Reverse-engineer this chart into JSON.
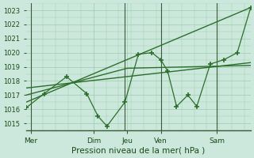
{
  "background_color": "#cce8dc",
  "grid_color": "#99ccaa",
  "line_color": "#2d6e2d",
  "fig_width": 3.2,
  "fig_height": 2.0,
  "dpi": 100,
  "xlim": [
    0,
    100
  ],
  "ylim": [
    1014.5,
    1023.5
  ],
  "yticks": [
    1015,
    1016,
    1017,
    1018,
    1019,
    1020,
    1021,
    1022,
    1023
  ],
  "xlabel": "Pression niveau de la mer( hPa )",
  "xtick_positions": [
    2,
    30,
    45,
    60,
    85
  ],
  "xtick_labels": [
    "Mer",
    "Dim",
    "Jeu",
    "Ven",
    "Sam"
  ],
  "vlines": [
    2,
    44,
    60,
    85
  ],
  "trend_upper": {
    "x": [
      0,
      100
    ],
    "y": [
      1016.5,
      1023.2
    ]
  },
  "trend_lower": {
    "x": [
      0,
      100
    ],
    "y": [
      1017.5,
      1019.3
    ]
  },
  "trend_mid": {
    "x": [
      0,
      45,
      100
    ],
    "y": [
      1017.0,
      1018.9,
      1019.1
    ]
  },
  "detail_line": {
    "x": [
      0,
      8,
      18,
      27,
      32,
      36,
      44,
      50,
      56,
      60,
      63,
      67,
      72,
      76,
      82,
      88,
      94,
      100
    ],
    "y": [
      1016.1,
      1017.1,
      1018.3,
      1017.1,
      1015.5,
      1014.8,
      1016.5,
      1019.9,
      1020.0,
      1019.5,
      1018.7,
      1016.2,
      1017.0,
      1016.2,
      1019.2,
      1019.5,
      1020.0,
      1023.2
    ]
  }
}
